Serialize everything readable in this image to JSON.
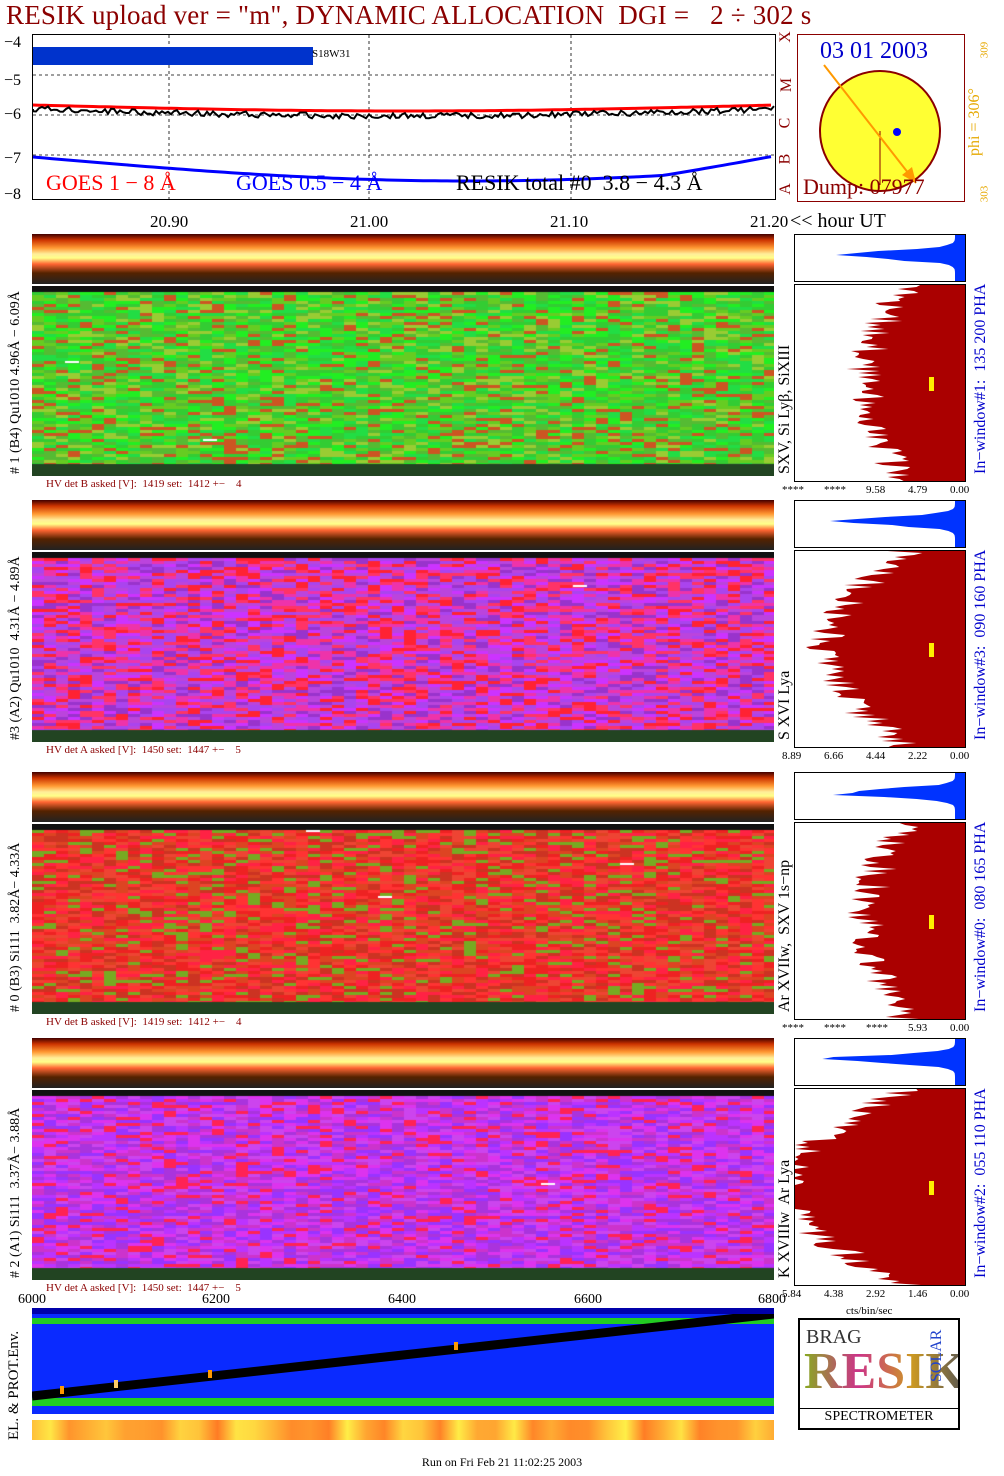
{
  "title": "RESIK upload ver = \"m\", DYNAMIC ALLOCATION  DGI =   2 ÷ 302 s",
  "goes": {
    "yticks": [
      "−4",
      "−5",
      "−6",
      "−7",
      "−8"
    ],
    "letters": [
      "X",
      "M",
      "C",
      "B",
      "A"
    ],
    "label_goes18": "GOES 1 − 8 Å",
    "label_goes054": "GOES 0.5 − 4 Å",
    "label_resik": "RESIK total #0  3.8 − 4.3 Å",
    "flare_tag": "S18W31",
    "colors": {
      "goes18": "#ff0000",
      "goes054": "#0000ff",
      "resik": "#000000"
    }
  },
  "sun": {
    "date": "03 01 2003",
    "dump": "Dump: 07977",
    "phi": "phi = 306°",
    "phi_top": "309",
    "phi_bottom": "303"
  },
  "time_axis": {
    "ticks": [
      "20.90",
      "21.00",
      "21.10",
      "21.20"
    ],
    "unit_label": "<< hour UT"
  },
  "channels": [
    {
      "id": "ch1",
      "side_label": "# 1 (B4) Qu1010 4.96Å − 6.09Å",
      "lines_label": "SXV, Si Lyβ, SiXIII",
      "window_label": "In−window#1:  135 200 PHA",
      "hv": "HV det B asked [V]:  1419 set:  1412 +−    4",
      "hist_ticks": [
        "****",
        "****",
        "9.58",
        "4.79",
        "0.00"
      ],
      "palette": "green"
    },
    {
      "id": "ch3",
      "side_label": "#3 (A2) Qu1010  4.31Å − 4.89Å",
      "lines_label": "S XVI Lya",
      "window_label": "In−window#3:  090 160 PHA",
      "hv": "HV det A asked [V]:  1450 set:  1447 +−    5",
      "hist_ticks": [
        "8.89",
        "6.66",
        "4.44",
        "2.22",
        "0.00"
      ],
      "palette": "magenta"
    },
    {
      "id": "ch0",
      "side_label": "# 0 (B3) Si111  3.82Å− 4.33Å",
      "lines_label": "Ar XVIIw,  SXV 1s−np",
      "window_label": "In−window#0:  080 165 PHA",
      "hv": "HV det B asked [V]:  1419 set:  1412 +−    4",
      "hist_ticks": [
        "****",
        "****",
        "****",
        "5.93",
        "0.00"
      ],
      "palette": "red"
    },
    {
      "id": "ch2",
      "side_label": "# 2 (A1) Si111  3.37Å− 3.88Å",
      "lines_label": "K XVIIIw  Ar Lya",
      "window_label": "In−window#2:  055 110 PHA",
      "hv": "HV det A asked [V]:  1450 set:  1447 +−    5",
      "hist_ticks": [
        "5.84",
        "4.38",
        "2.92",
        "1.46",
        "0.00"
      ],
      "palette": "purple"
    }
  ],
  "hist_unit": "cts/bin/sec",
  "orbit_axis": {
    "ticks": [
      "6000",
      "6200",
      "6400",
      "6600",
      "6800"
    ],
    "env_label": "EL. & PROT.Env."
  },
  "logo": {
    "text_top": "BRAG",
    "text_main": "RESIK",
    "text_side": "SOLAR",
    "text_bottom": "SPECTROMETER"
  },
  "footer": "Run on Fri Feb 21 11:02:25 2003"
}
